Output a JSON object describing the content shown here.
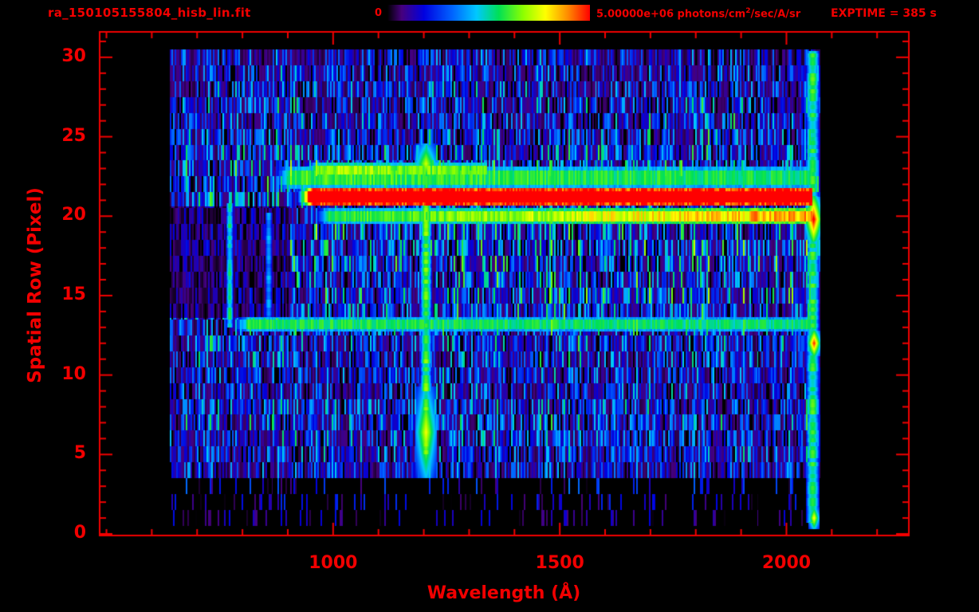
{
  "theme": {
    "background": "#000000",
    "accent": "#f20000"
  },
  "header": {
    "filename": "ra_150105155804_hisb_lin.fit",
    "colorbar_min": "0",
    "colorbar_max": "5.00000e+06",
    "units_pre": "photons/cm",
    "units_sup": "2",
    "units_post": "/sec/A/sr",
    "exptime": "EXPTIME = 385 s"
  },
  "chart_data": {
    "type": "heatmap",
    "title": "ra_150105155804_hisb_lin.fit",
    "xlabel": "Wavelength (Å)",
    "ylabel": "Spatial Row (Pixel)",
    "x_ticks": [
      1000,
      1500,
      2000
    ],
    "x_minor_step": 100,
    "y_ticks": [
      0,
      5,
      10,
      15,
      20,
      25,
      30
    ],
    "y_minor_step": 1,
    "x_range": [
      485,
      2270
    ],
    "y_range": [
      -0.1,
      31.6
    ],
    "data_wl_range": [
      640,
      2075
    ],
    "colorbar": {
      "min_value": 0,
      "max_value": 5000000,
      "units": "photons/cm2/sec/A/sr"
    },
    "exposure_time_s": 385,
    "colormap_stops": [
      0,
      0.07,
      0.18,
      0.32,
      0.44,
      0.55,
      0.67,
      0.78,
      0.89,
      1.0
    ],
    "colormap_colors": [
      "#000000",
      "#46007d",
      "#0000e0",
      "#0064ff",
      "#00c8ff",
      "#00e055",
      "#8cff00",
      "#ffff00",
      "#ff8c00",
      "#ff0000"
    ],
    "row_noise_base": [
      0.0,
      0.04,
      0.05,
      0.07,
      0.15,
      0.17,
      0.18,
      0.19,
      0.18,
      0.17,
      0.17,
      0.18,
      0.19,
      0.2,
      0.21,
      0.22,
      0.21,
      0.22,
      0.23,
      0.22,
      0.2,
      0.2,
      0.2,
      0.22,
      0.2,
      0.19,
      0.18,
      0.18,
      0.17,
      0.16,
      0.15
    ],
    "features": [
      {
        "kind": "dim",
        "r0": 13.6,
        "r1": 20.6,
        "wl0": 640,
        "wl1": 905,
        "factor": 0.35
      },
      {
        "kind": "hband",
        "row": 21.2,
        "half": 0.55,
        "wl0": 916,
        "wl1": 2058,
        "v": 1.35,
        "v1": 1.35
      },
      {
        "kind": "hband",
        "row": 22.4,
        "half": 0.7,
        "wl0": 865,
        "wl1": 2058,
        "v": 0.6,
        "v1": 0.54
      },
      {
        "kind": "hband",
        "row": 22.9,
        "half": 0.45,
        "wl0": 930,
        "wl1": 1340,
        "v": 0.7,
        "v1": 0.6
      },
      {
        "kind": "hband",
        "row": 20.0,
        "half": 0.5,
        "wl0": 952,
        "wl1": 2058,
        "v": 0.55,
        "v1": 0.88
      },
      {
        "kind": "hband",
        "row": 13.2,
        "half": 0.45,
        "wl0": 772,
        "wl1": 2066,
        "v": 0.56,
        "v1": 0.52
      },
      {
        "kind": "vline",
        "wl": 772,
        "half": 8,
        "r0": 13.0,
        "r1": 20.8,
        "v": 0.5
      },
      {
        "kind": "vline",
        "wl": 858,
        "half": 8,
        "r0": 13.2,
        "r1": 20.2,
        "v": 0.38
      },
      {
        "kind": "vline",
        "wl": 1205,
        "half": 13,
        "r0": 4.9,
        "r1": 23.6,
        "v": 0.6
      },
      {
        "kind": "spot",
        "wl": 1205,
        "row": 6.4,
        "w": 24,
        "h": 2.9,
        "v": 0.78
      },
      {
        "kind": "spot",
        "wl": 1205,
        "row": 23.3,
        "w": 26,
        "h": 1.3,
        "v": 0.74
      },
      {
        "kind": "vline",
        "wl": 2058,
        "half": 15,
        "r0": 0.7,
        "r1": 30.4,
        "v": 0.55
      },
      {
        "kind": "spot",
        "wl": 2060,
        "row": 19.8,
        "w": 18,
        "h": 1.4,
        "v": 1.05
      },
      {
        "kind": "spot",
        "wl": 2061,
        "row": 12.0,
        "w": 14,
        "h": 0.8,
        "v": 1.0
      },
      {
        "kind": "spot",
        "wl": 2061,
        "row": 1.0,
        "w": 12,
        "h": 0.7,
        "v": 0.82
      }
    ]
  }
}
